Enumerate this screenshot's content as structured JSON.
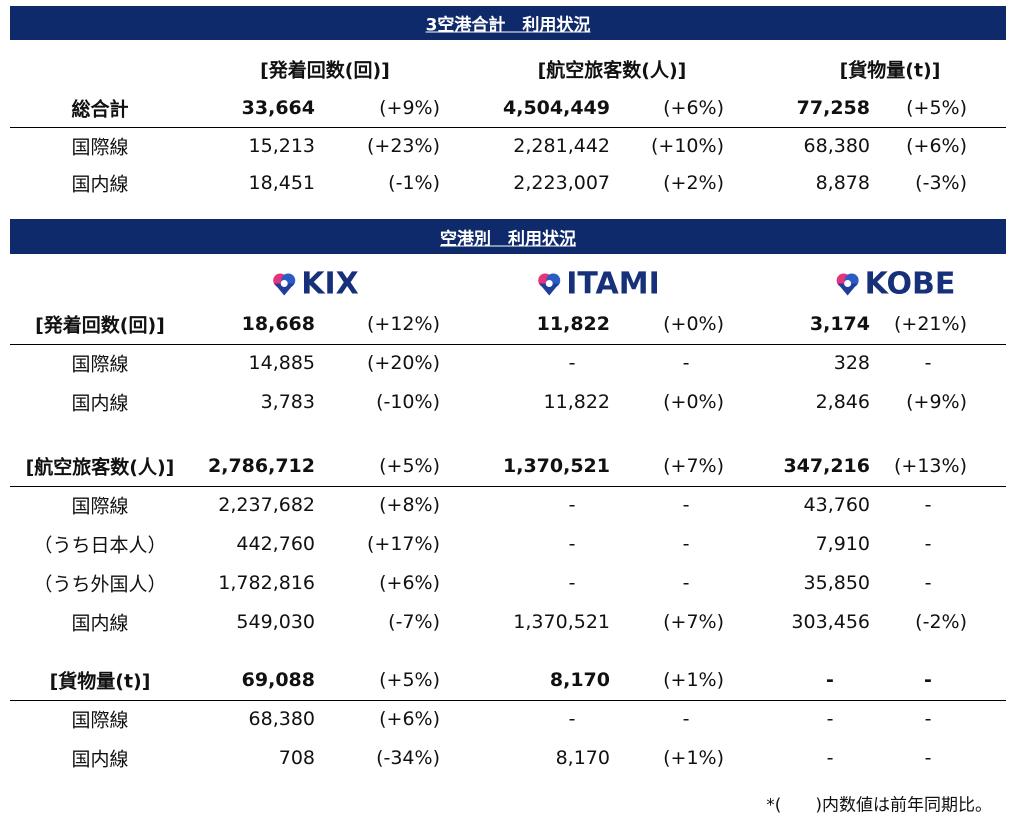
{
  "summary": {
    "title": "3空港合計　利用状況",
    "headers": [
      "[発着回数(回)]",
      "[航空旅客数(人)]",
      "[貨物量(t)]"
    ],
    "total": {
      "label": "総合計",
      "values": [
        "33,664",
        "(+9%)",
        "4,504,449",
        "(+6%)",
        "77,258",
        "(+5%)"
      ]
    },
    "rows": [
      {
        "label": "国際線",
        "values": [
          "15,213",
          "(+23%)",
          "2,281,442",
          "(+10%)",
          "68,380",
          "(+6%)"
        ]
      },
      {
        "label": "国内線",
        "values": [
          "18,451",
          "(-1%)",
          "2,223,007",
          "(+2%)",
          "8,878",
          "(-3%)"
        ]
      }
    ]
  },
  "airports": {
    "title": "空港別　利用状況",
    "logos": [
      "KIX",
      "ITAMI",
      "KOBE"
    ],
    "sections": [
      {
        "label": "[発着回数(回)]",
        "values": [
          "18,668",
          "(+12%)",
          "11,822",
          "(+0%)",
          "3,174",
          "(+21%)"
        ],
        "rows": [
          {
            "label": "国際線",
            "values": [
              "14,885",
              "(+20%)",
              "-",
              "-",
              "328",
              "-"
            ]
          },
          {
            "label": "国内線",
            "values": [
              "3,783",
              "(-10%)",
              "11,822",
              "(+0%)",
              "2,846",
              "(+9%)"
            ]
          }
        ]
      },
      {
        "label": "[航空旅客数(人)]",
        "values": [
          "2,786,712",
          "(+5%)",
          "1,370,521",
          "(+7%)",
          "347,216",
          "(+13%)"
        ],
        "rows": [
          {
            "label": "国際線",
            "values": [
              "2,237,682",
              "(+8%)",
              "-",
              "-",
              "43,760",
              "-"
            ]
          },
          {
            "label": "（うち日本人）",
            "values": [
              "442,760",
              "(+17%)",
              "-",
              "-",
              "7,910",
              "-"
            ]
          },
          {
            "label": "（うち外国人）",
            "values": [
              "1,782,816",
              "(+6%)",
              "-",
              "-",
              "35,850",
              "-"
            ]
          },
          {
            "label": "国内線",
            "values": [
              "549,030",
              "(-7%)",
              "1,370,521",
              "(+7%)",
              "303,456",
              "(-2%)"
            ]
          }
        ]
      },
      {
        "label": "[貨物量(t)]",
        "values": [
          "69,088",
          "(+5%)",
          "8,170",
          "(+1%)",
          "-",
          "-"
        ],
        "rows": [
          {
            "label": "国際線",
            "values": [
              "68,380",
              "(+6%)",
              "-",
              "-",
              "-",
              "-"
            ]
          },
          {
            "label": "国内線",
            "values": [
              "708",
              "(-34%)",
              "8,170",
              "(+1%)",
              "-",
              "-"
            ]
          }
        ]
      }
    ]
  },
  "note": "*(　　)内数値は前年同期比。"
}
